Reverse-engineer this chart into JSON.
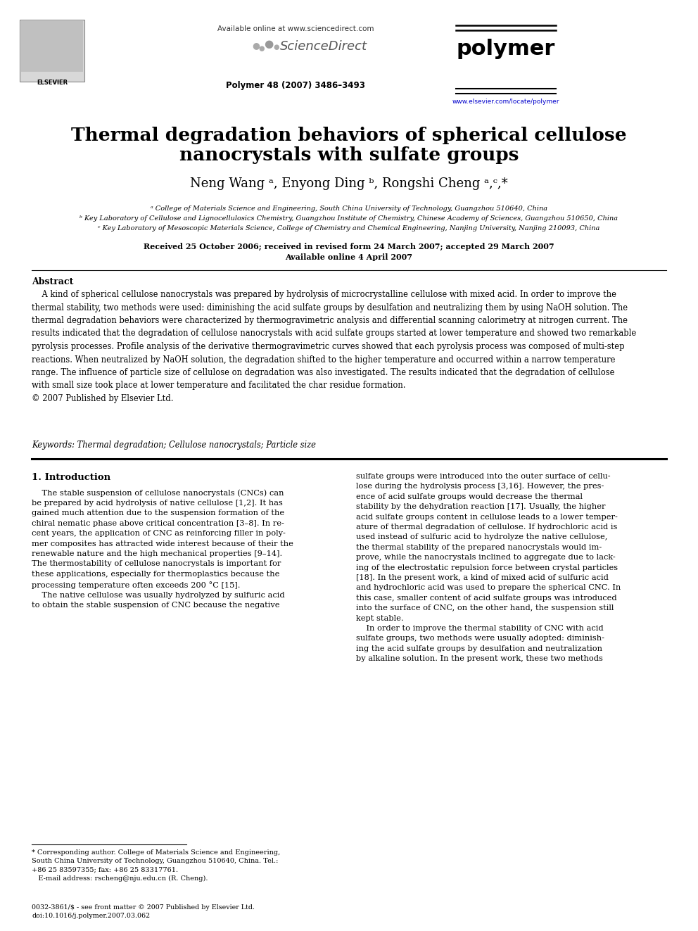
{
  "bg_color": "#ffffff",
  "header_available": "Available online at www.sciencedirect.com",
  "header_journal_info": "Polymer 48 (2007) 3486–3493",
  "header_journal_name": "polymer",
  "header_url": "www.elsevier.com/locate/polymer",
  "title_line1": "Thermal degradation behaviors of spherical cellulose",
  "title_line2": "nanocrystals with sulfate groups",
  "authors": "Neng Wang ᵃ, Enyong Ding ᵇ, Rongshi Cheng ᵃ,ᶜ,*",
  "aff1": "ᵃ College of Materials Science and Engineering, South China University of Technology, Guangzhou 510640, China",
  "aff2": "ᵇ Key Laboratory of Cellulose and Lignocellulosics Chemistry, Guangzhou Institute of Chemistry, Chinese Academy of Sciences, Guangzhou 510650, China",
  "aff3": "ᶜ Key Laboratory of Mesoscopic Materials Science, College of Chemistry and Chemical Engineering, Nanjing University, Nanjing 210093, China",
  "dates_line1": "Received 25 October 2006; received in revised form 24 March 2007; accepted 29 March 2007",
  "dates_line2": "Available online 4 April 2007",
  "abstract_title": "Abstract",
  "abstract_para": "    A kind of spherical cellulose nanocrystals was prepared by hydrolysis of microcrystalline cellulose with mixed acid. In order to improve the\nthermal stability, two methods were used: diminishing the acid sulfate groups by desulfation and neutralizing them by using NaOH solution. The\nthermal degradation behaviors were characterized by thermogravimetric analysis and differential scanning calorimetry at nitrogen current. The\nresults indicated that the degradation of cellulose nanocrystals with acid sulfate groups started at lower temperature and showed two remarkable\npyrolysis processes. Profile analysis of the derivative thermogravimetric curves showed that each pyrolysis process was composed of multi-step\nreactions. When neutralized by NaOH solution, the degradation shifted to the higher temperature and occurred within a narrow temperature\nrange. The influence of particle size of cellulose on degradation was also investigated. The results indicated that the degradation of cellulose\nwith small size took place at lower temperature and facilitated the char residue formation.\n© 2007 Published by Elsevier Ltd.",
  "keywords_text": "Keywords: Thermal degradation; Cellulose nanocrystals; Particle size",
  "intro_title": "1. Introduction",
  "intro_col1": "    The stable suspension of cellulose nanocrystals (CNCs) can\nbe prepared by acid hydrolysis of native cellulose [1,2]. It has\ngained much attention due to the suspension formation of the\nchiral nematic phase above critical concentration [3–8]. In re-\ncent years, the application of CNC as reinforcing filler in poly-\nmer composites has attracted wide interest because of their the\nrenewable nature and the high mechanical properties [9–14].\nThe thermostability of cellulose nanocrystals is important for\nthese applications, especially for thermoplastics because the\nprocessing temperature often exceeds 200 °C [15].\n    The native cellulose was usually hydrolyzed by sulfuric acid\nto obtain the stable suspension of CNC because the negative",
  "intro_col2": "sulfate groups were introduced into the outer surface of cellu-\nlose during the hydrolysis process [3,16]. However, the pres-\nence of acid sulfate groups would decrease the thermal\nstability by the dehydration reaction [17]. Usually, the higher\nacid sulfate groups content in cellulose leads to a lower temper-\nature of thermal degradation of cellulose. If hydrochloric acid is\nused instead of sulfuric acid to hydrolyze the native cellulose,\nthe thermal stability of the prepared nanocrystals would im-\nprove, while the nanocrystals inclined to aggregate due to lack-\ning of the electrostatic repulsion force between crystal particles\n[18]. In the present work, a kind of mixed acid of sulfuric acid\nand hydrochloric acid was used to prepare the spherical CNC. In\nthis case, smaller content of acid sulfate groups was introduced\ninto the surface of CNC, on the other hand, the suspension still\nkept stable.\n    In order to improve the thermal stability of CNC with acid\nsulfate groups, two methods were usually adopted: diminish-\ning the acid sulfate groups by desulfation and neutralization\nby alkaline solution. In the present work, these two methods",
  "footnote": "* Corresponding author. College of Materials Science and Engineering,\nSouth China University of Technology, Guangzhou 510640, China. Tel.:\n+86 25 83597355; fax: +86 25 83317761.\n   E-mail address: rscheng@nju.edu.cn (R. Cheng).",
  "footer": "0032-3861/$ - see front matter © 2007 Published by Elsevier Ltd.\ndoi:10.1016/j.polymer.2007.03.062"
}
